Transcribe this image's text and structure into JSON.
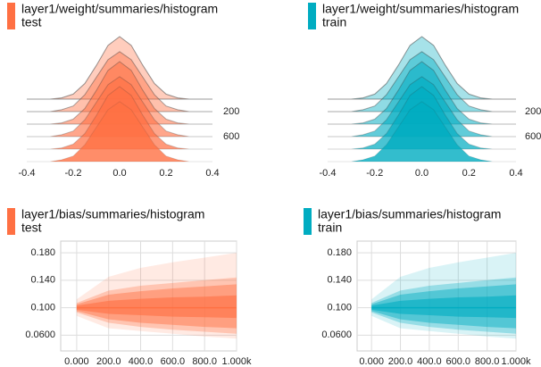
{
  "chart_data": [
    {
      "type": "ridgeline",
      "title": "layer1/weight/summaries/histogram",
      "subtitle": "test",
      "color": "#ff7043",
      "x": [
        -0.4,
        -0.35,
        -0.3,
        -0.25,
        -0.2,
        -0.15,
        -0.1,
        -0.05,
        0,
        0.05,
        0.1,
        0.15,
        0.2,
        0.25,
        0.3,
        0.35,
        0.4
      ],
      "xlim": [
        -0.4,
        0.4
      ],
      "xticks": [
        -0.4,
        -0.2,
        {
          "value": 0,
          "label": "0.0"
        },
        0.2,
        0.4
      ],
      "ylim": [
        0,
        1000
      ],
      "yticks": [
        200,
        600
      ],
      "series": [
        {
          "step": 0,
          "values": [
            0,
            0,
            0,
            2,
            8,
            25,
            54,
            86,
            100,
            86,
            54,
            25,
            8,
            2,
            0,
            0,
            0
          ]
        },
        {
          "step": 200,
          "values": [
            0,
            0,
            0,
            3,
            9,
            27,
            55,
            83,
            96,
            83,
            55,
            27,
            9,
            3,
            0,
            0,
            0
          ]
        },
        {
          "step": 400,
          "values": [
            0,
            0,
            0,
            2,
            8,
            25,
            54,
            86,
            100,
            86,
            54,
            25,
            8,
            2,
            0,
            0,
            0
          ]
        },
        {
          "step": 600,
          "values": [
            0,
            0,
            0,
            3,
            9,
            27,
            55,
            83,
            96,
            83,
            55,
            27,
            9,
            3,
            0,
            0,
            0
          ]
        },
        {
          "step": 800,
          "values": [
            0,
            0,
            0,
            2,
            8,
            25,
            54,
            86,
            100,
            86,
            54,
            25,
            8,
            2,
            0,
            0,
            0
          ]
        },
        {
          "step": 1000,
          "values": [
            0,
            0,
            0,
            3,
            9,
            27,
            55,
            83,
            96,
            83,
            55,
            27,
            9,
            3,
            0,
            0,
            0
          ]
        }
      ]
    },
    {
      "type": "ridgeline",
      "title": "layer1/weight/summaries/histogram",
      "subtitle": "train",
      "color": "#00acc1",
      "x": [
        -0.4,
        -0.35,
        -0.3,
        -0.25,
        -0.2,
        -0.15,
        -0.1,
        -0.05,
        0,
        0.05,
        0.1,
        0.15,
        0.2,
        0.25,
        0.3,
        0.35,
        0.4
      ],
      "xlim": [
        -0.4,
        0.4
      ],
      "xticks": [
        -0.4,
        -0.2,
        {
          "value": 0,
          "label": "0.0"
        },
        0.2,
        0.4
      ],
      "ylim": [
        0,
        1000
      ],
      "yticks": [
        200,
        600
      ],
      "series": [
        {
          "step": 0,
          "values": [
            0,
            0,
            0,
            2,
            8,
            25,
            54,
            86,
            100,
            86,
            54,
            25,
            8,
            2,
            0,
            0,
            0
          ]
        },
        {
          "step": 200,
          "values": [
            0,
            0,
            0,
            3,
            9,
            27,
            55,
            83,
            96,
            83,
            55,
            27,
            9,
            3,
            0,
            0,
            0
          ]
        },
        {
          "step": 400,
          "values": [
            0,
            0,
            0,
            2,
            8,
            25,
            54,
            86,
            100,
            86,
            54,
            25,
            8,
            2,
            0,
            0,
            0
          ]
        },
        {
          "step": 600,
          "values": [
            0,
            0,
            0,
            3,
            9,
            27,
            55,
            83,
            96,
            83,
            55,
            27,
            9,
            3,
            0,
            0,
            0
          ]
        },
        {
          "step": 800,
          "values": [
            0,
            0,
            0,
            2,
            8,
            25,
            54,
            86,
            100,
            86,
            54,
            25,
            8,
            2,
            0,
            0,
            0
          ]
        },
        {
          "step": 1000,
          "values": [
            0,
            0,
            0,
            3,
            9,
            27,
            55,
            83,
            96,
            83,
            55,
            27,
            9,
            3,
            0,
            0,
            0
          ]
        }
      ]
    },
    {
      "type": "distribution",
      "title": "layer1/bias/summaries/histogram",
      "subtitle": "test",
      "color": "#ff7043",
      "x": [
        0,
        200,
        400,
        600,
        800,
        1000
      ],
      "xlim": [
        -100,
        1000
      ],
      "xticks": [
        {
          "value": 0,
          "label": "0.000"
        },
        {
          "value": 200,
          "label": "200.0"
        },
        {
          "value": 400,
          "label": "400.0"
        },
        {
          "value": 600,
          "label": "600.0"
        },
        {
          "value": 800,
          "label": "800.0"
        },
        {
          "value": 1000,
          "label": "1.000k"
        }
      ],
      "ylim": [
        0.037,
        0.197
      ],
      "yticks": [
        {
          "value": 0.06,
          "label": "0.0600"
        },
        {
          "value": 0.1,
          "label": "0.100"
        },
        {
          "value": 0.14,
          "label": "0.140"
        },
        {
          "value": 0.18,
          "label": "0.180"
        }
      ],
      "series": [
        {
          "values": [
            0.112,
            0.145,
            0.158,
            0.166,
            0.173,
            0.18
          ]
        },
        {
          "values": [
            0.107,
            0.125,
            0.132,
            0.136,
            0.14,
            0.144
          ]
        },
        {
          "values": [
            0.105,
            0.119,
            0.124,
            0.128,
            0.131,
            0.134
          ]
        },
        {
          "values": [
            0.103,
            0.11,
            0.113,
            0.115,
            0.116,
            0.118
          ]
        },
        {
          "values": [
            0.1,
            0.1,
            0.1,
            0.1,
            0.1,
            0.1
          ]
        },
        {
          "values": [
            0.097,
            0.091,
            0.089,
            0.087,
            0.086,
            0.085
          ]
        },
        {
          "values": [
            0.095,
            0.083,
            0.078,
            0.075,
            0.072,
            0.07
          ]
        },
        {
          "values": [
            0.093,
            0.078,
            0.072,
            0.068,
            0.065,
            0.062
          ]
        },
        {
          "values": [
            0.088,
            0.07,
            0.066,
            0.062,
            0.058,
            0.055
          ]
        }
      ]
    },
    {
      "type": "distribution",
      "title": "layer1/bias/summaries/histogram",
      "subtitle": "train",
      "color": "#00acc1",
      "x": [
        0,
        200,
        400,
        600,
        800,
        1000
      ],
      "xlim": [
        -100,
        1000
      ],
      "xticks": [
        {
          "value": 0,
          "label": "0.000"
        },
        {
          "value": 200,
          "label": "200.0"
        },
        {
          "value": 400,
          "label": "400.0"
        },
        {
          "value": 600,
          "label": "600.0"
        },
        {
          "value": 800,
          "label": "800.0"
        },
        {
          "value": 1000,
          "label": "1.000k"
        }
      ],
      "ylim": [
        0.037,
        0.197
      ],
      "yticks": [
        {
          "value": 0.06,
          "label": "0.0600"
        },
        {
          "value": 0.1,
          "label": "0.100"
        },
        {
          "value": 0.14,
          "label": "0.140"
        },
        {
          "value": 0.18,
          "label": "0.180"
        }
      ],
      "series": [
        {
          "values": [
            0.112,
            0.145,
            0.158,
            0.166,
            0.173,
            0.18
          ]
        },
        {
          "values": [
            0.107,
            0.125,
            0.132,
            0.136,
            0.14,
            0.144
          ]
        },
        {
          "values": [
            0.105,
            0.119,
            0.124,
            0.128,
            0.131,
            0.134
          ]
        },
        {
          "values": [
            0.103,
            0.11,
            0.113,
            0.115,
            0.116,
            0.118
          ]
        },
        {
          "values": [
            0.1,
            0.1,
            0.1,
            0.1,
            0.1,
            0.1
          ]
        },
        {
          "values": [
            0.097,
            0.091,
            0.089,
            0.087,
            0.086,
            0.085
          ]
        },
        {
          "values": [
            0.095,
            0.083,
            0.078,
            0.075,
            0.072,
            0.07
          ]
        },
        {
          "values": [
            0.093,
            0.078,
            0.072,
            0.068,
            0.065,
            0.062
          ]
        },
        {
          "values": [
            0.088,
            0.07,
            0.066,
            0.062,
            0.058,
            0.055
          ]
        }
      ]
    }
  ]
}
